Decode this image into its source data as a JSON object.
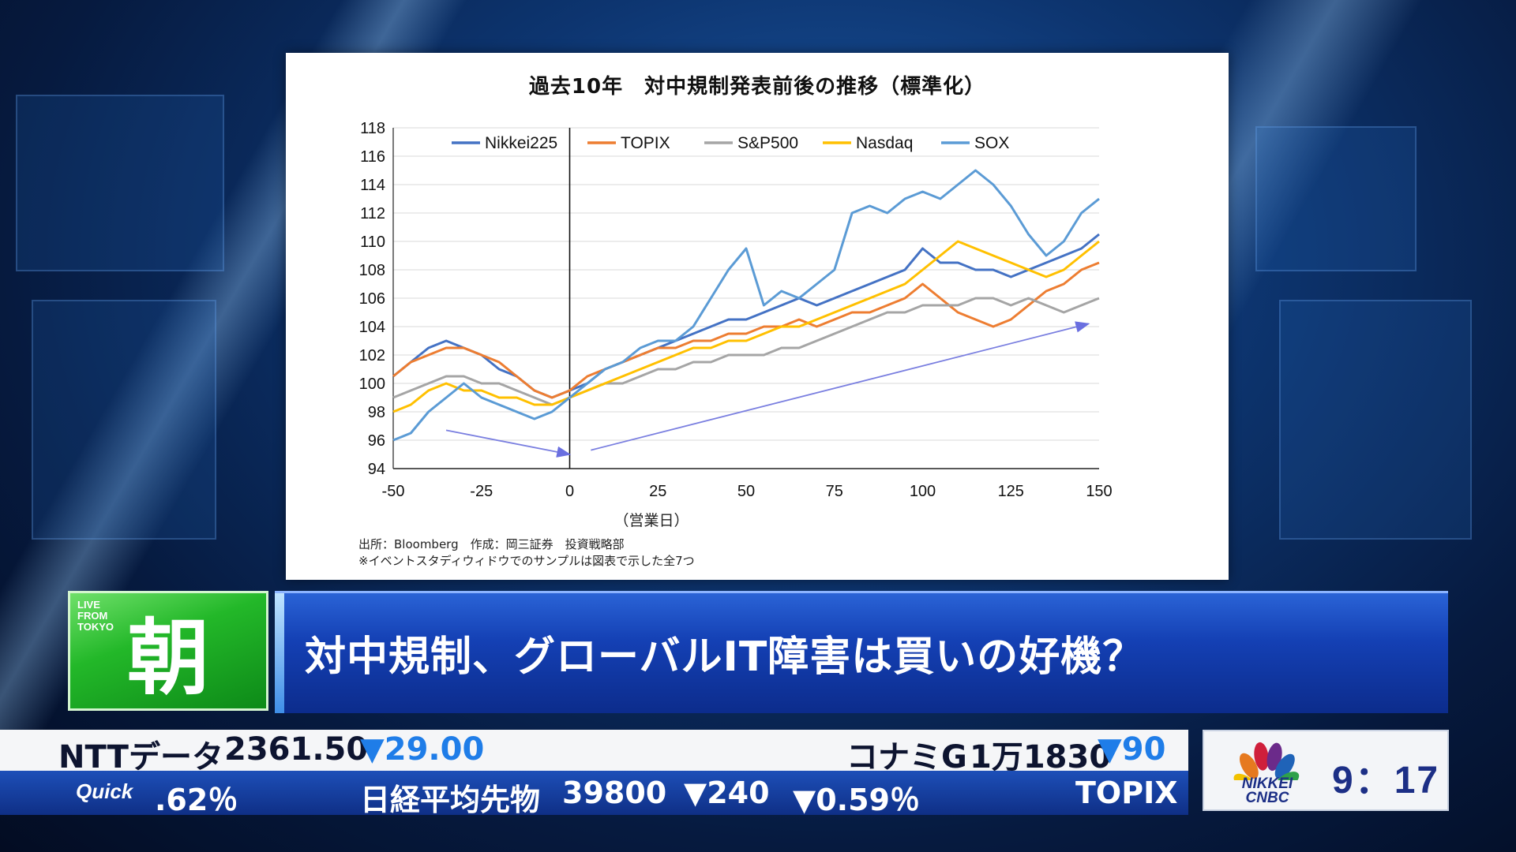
{
  "chart_data": {
    "type": "line",
    "title": "過去10年　対中規制発表前後の推移（標準化）",
    "xlabel": "（営業日）",
    "ylabel": "",
    "xlim": [
      -50,
      150
    ],
    "ylim": [
      94,
      118
    ],
    "x_ticks": [
      "-50",
      "-25",
      "0",
      "25",
      "50",
      "75",
      "100",
      "125",
      "150"
    ],
    "y_ticks": [
      "94",
      "96",
      "98",
      "100",
      "102",
      "104",
      "106",
      "108",
      "110",
      "112",
      "114",
      "116",
      "118"
    ],
    "grid": "horizontal",
    "legend_position": "top",
    "event_line_x": 0,
    "series": [
      {
        "name": "Nikkei225",
        "color": "#4472C4",
        "x": [
          -50,
          -45,
          -40,
          -35,
          -30,
          -25,
          -20,
          -15,
          -10,
          -5,
          0,
          5,
          10,
          15,
          20,
          25,
          30,
          35,
          40,
          45,
          50,
          55,
          60,
          65,
          70,
          75,
          80,
          85,
          90,
          95,
          100,
          105,
          110,
          115,
          120,
          125,
          130,
          135,
          140,
          145,
          150
        ],
        "y": [
          100.5,
          101.5,
          102.5,
          103.0,
          102.5,
          102.0,
          101.0,
          100.5,
          99.5,
          99.0,
          99.5,
          100.0,
          101.0,
          101.5,
          102.0,
          102.5,
          103.0,
          103.5,
          104.0,
          104.5,
          104.5,
          105.0,
          105.5,
          106.0,
          105.5,
          106.0,
          106.5,
          107.0,
          107.5,
          108.0,
          109.5,
          108.5,
          108.5,
          108.0,
          108.0,
          107.5,
          108.0,
          108.5,
          109.0,
          109.5,
          110.5
        ]
      },
      {
        "name": "TOPIX",
        "color": "#ED7D31",
        "x": [
          -50,
          -45,
          -40,
          -35,
          -30,
          -25,
          -20,
          -15,
          -10,
          -5,
          0,
          5,
          10,
          15,
          20,
          25,
          30,
          35,
          40,
          45,
          50,
          55,
          60,
          65,
          70,
          75,
          80,
          85,
          90,
          95,
          100,
          105,
          110,
          115,
          120,
          125,
          130,
          135,
          140,
          145,
          150
        ],
        "y": [
          100.5,
          101.5,
          102.0,
          102.5,
          102.5,
          102.0,
          101.5,
          100.5,
          99.5,
          99.0,
          99.5,
          100.5,
          101.0,
          101.5,
          102.0,
          102.5,
          102.5,
          103.0,
          103.0,
          103.5,
          103.5,
          104.0,
          104.0,
          104.5,
          104.0,
          104.5,
          105.0,
          105.0,
          105.5,
          106.0,
          107.0,
          106.0,
          105.0,
          104.5,
          104.0,
          104.5,
          105.5,
          106.5,
          107.0,
          108.0,
          108.5
        ]
      },
      {
        "name": "S&P500",
        "color": "#A5A5A5",
        "x": [
          -50,
          -45,
          -40,
          -35,
          -30,
          -25,
          -20,
          -15,
          -10,
          -5,
          0,
          5,
          10,
          15,
          20,
          25,
          30,
          35,
          40,
          45,
          50,
          55,
          60,
          65,
          70,
          75,
          80,
          85,
          90,
          95,
          100,
          105,
          110,
          115,
          120,
          125,
          130,
          135,
          140,
          145,
          150
        ],
        "y": [
          99.0,
          99.5,
          100.0,
          100.5,
          100.5,
          100.0,
          100.0,
          99.5,
          99.0,
          98.5,
          99.0,
          99.5,
          100.0,
          100.0,
          100.5,
          101.0,
          101.0,
          101.5,
          101.5,
          102.0,
          102.0,
          102.0,
          102.5,
          102.5,
          103.0,
          103.5,
          104.0,
          104.5,
          105.0,
          105.0,
          105.5,
          105.5,
          105.5,
          106.0,
          106.0,
          105.5,
          106.0,
          105.5,
          105.0,
          105.5,
          106.0
        ]
      },
      {
        "name": "Nasdaq",
        "color": "#FFC000",
        "x": [
          -50,
          -45,
          -40,
          -35,
          -30,
          -25,
          -20,
          -15,
          -10,
          -5,
          0,
          5,
          10,
          15,
          20,
          25,
          30,
          35,
          40,
          45,
          50,
          55,
          60,
          65,
          70,
          75,
          80,
          85,
          90,
          95,
          100,
          105,
          110,
          115,
          120,
          125,
          130,
          135,
          140,
          145,
          150
        ],
        "y": [
          98.0,
          98.5,
          99.5,
          100.0,
          99.5,
          99.5,
          99.0,
          99.0,
          98.5,
          98.5,
          99.0,
          99.5,
          100.0,
          100.5,
          101.0,
          101.5,
          102.0,
          102.5,
          102.5,
          103.0,
          103.0,
          103.5,
          104.0,
          104.0,
          104.5,
          105.0,
          105.5,
          106.0,
          106.5,
          107.0,
          108.0,
          109.0,
          110.0,
          109.5,
          109.0,
          108.5,
          108.0,
          107.5,
          108.0,
          109.0,
          110.0
        ]
      },
      {
        "name": "SOX",
        "color": "#5B9BD5",
        "x": [
          -50,
          -45,
          -40,
          -35,
          -30,
          -25,
          -20,
          -15,
          -10,
          -5,
          0,
          5,
          10,
          15,
          20,
          25,
          30,
          35,
          40,
          45,
          50,
          55,
          60,
          65,
          70,
          75,
          80,
          85,
          90,
          95,
          100,
          105,
          110,
          115,
          120,
          125,
          130,
          135,
          140,
          145,
          150
        ],
        "y": [
          96.0,
          96.5,
          98.0,
          99.0,
          100.0,
          99.0,
          98.5,
          98.0,
          97.5,
          98.0,
          99.0,
          100.0,
          101.0,
          101.5,
          102.5,
          103.0,
          103.0,
          104.0,
          106.0,
          108.0,
          109.5,
          105.5,
          106.5,
          106.0,
          107.0,
          108.0,
          112.0,
          112.5,
          112.0,
          113.0,
          113.5,
          113.0,
          114.0,
          115.0,
          114.0,
          112.5,
          110.5,
          109.0,
          110.0,
          112.0,
          113.0
        ]
      }
    ],
    "annotations": [
      {
        "type": "arrow",
        "from": [
          -35,
          96.7
        ],
        "to": [
          0,
          95.0
        ],
        "color": "#7A7FE0"
      },
      {
        "type": "arrow",
        "from": [
          6,
          95.3
        ],
        "to": [
          147,
          104.2
        ],
        "color": "#7A7FE0"
      }
    ]
  },
  "chart_footnotes": {
    "source": "出所：Bloomberg　作成：岡三証券　投資戦略部",
    "note": "※イベントスタディウィドウでのサンプルは図表で示した全7つ"
  },
  "program_logo": {
    "live_text": "LIVE\nFROM\nTOKYO",
    "kanji": "朝"
  },
  "headline": "対中規制、グローバルIT障害は買いの好機？",
  "ticker_top": {
    "left_name": "NTTデータ",
    "left_price": "2361.50",
    "left_change": "▼29.00",
    "right_name": "コナミG",
    "right_price": "1万1830",
    "right_change": "▼90"
  },
  "ticker_bottom": {
    "provider": "Quick",
    "prev_fragment": ".62％",
    "index_name": "日経平均先物",
    "index_value": "39800",
    "index_change": "▼240",
    "index_pct": "▼0.59％",
    "next_fragment": "TOPIX"
  },
  "clock": {
    "brand_line1": "NIKKEI",
    "brand_line2": "CNBC",
    "time": "9：17"
  },
  "colors": {
    "headline_blue": "#1440b4",
    "logo_green": "#23b829",
    "ticker_down": "#1f7de8",
    "brand_navy": "#1c2f86"
  }
}
